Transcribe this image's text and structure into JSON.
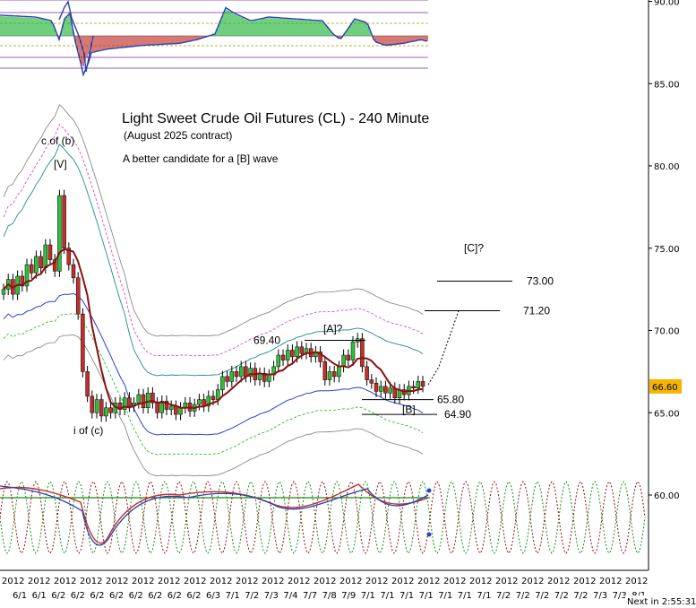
{
  "chart_data": {
    "type": "candlestick",
    "title": "Light Sweet Crude Oil Futures (CL) - 240 Minute",
    "subtitle": "(August 2025 contract)",
    "note": "A better candidate for a [B] wave",
    "y_axis": {
      "ticks": [
        60.0,
        65.0,
        70.0,
        75.0,
        80.0,
        85.0,
        90.0
      ],
      "labels": [
        "60.00",
        "65.00",
        "70.00",
        "75.00",
        "80.00",
        "85.00",
        "90.00"
      ]
    },
    "last_price": "66.60",
    "wave_labels": [
      {
        "text": "c of (b)",
        "price": 81.3
      },
      {
        "text": "[V]",
        "price": 79.9
      },
      {
        "text": "i of (c)",
        "price": 63.7
      },
      {
        "text": "[A]?",
        "price": 69.9
      },
      {
        "text": "[B]",
        "price": 65.0
      },
      {
        "text": "[C]?",
        "price": 74.8
      }
    ],
    "levels": [
      {
        "label": "69.40",
        "value": 69.4
      },
      {
        "label": "65.80",
        "value": 65.8
      },
      {
        "label": "64.90",
        "value": 64.9
      },
      {
        "label": "71.20",
        "value": 71.2
      },
      {
        "label": "73.00",
        "value": 73.0
      }
    ],
    "closes": [
      72.5,
      73.1,
      72.2,
      73.3,
      72.7,
      74.0,
      73.5,
      74.5,
      73.8,
      75.2,
      74.3,
      73.6,
      78.2,
      75.0,
      74.0,
      73.2,
      71.0,
      67.5,
      66.0,
      65.0,
      65.8,
      64.8,
      65.3,
      65.0,
      65.6,
      65.2,
      65.9,
      65.4,
      65.6,
      66.1,
      65.3,
      66.2,
      65.6,
      65.0,
      65.7,
      65.2,
      65.4,
      64.9,
      65.3,
      65.6,
      65.1,
      65.5,
      65.8,
      65.4,
      66.0,
      65.8,
      66.4,
      67.2,
      66.9,
      67.5,
      67.2,
      67.8,
      67.2,
      67.7,
      67.0,
      67.4,
      66.9,
      67.3,
      67.8,
      68.5,
      68.2,
      68.8,
      68.4,
      69.0,
      68.6,
      68.9,
      68.4,
      68.7,
      68.1,
      67.0,
      67.5,
      67.2,
      67.8,
      68.5,
      68.2,
      69.3,
      69.5,
      67.8,
      67.0,
      66.8,
      66.3,
      66.6,
      66.2,
      66.5,
      65.9,
      66.4,
      66.1,
      66.6,
      66.5,
      66.9,
      66.6
    ],
    "x_axis": {
      "year_labels": [
        "2012",
        "2012",
        "2012",
        "2012",
        "2012",
        "2012",
        "2012",
        "2012",
        "2012",
        "2012",
        "2012",
        "2012",
        "2012",
        "2012",
        "2012",
        "2012",
        "2012",
        "2012",
        "2012",
        "2012",
        "2012",
        "2012",
        "2012",
        "2012",
        "2012"
      ],
      "date_labels": [
        "6/1",
        "6/1",
        "6/2",
        "6/2",
        "6/2",
        "6/2",
        "6/2",
        "6/2",
        "6/2",
        "6/2",
        "6/3",
        "7/1",
        "7/2",
        "7/3",
        "7/4",
        "7/7",
        "7/8",
        "7/9",
        "7/1",
        "7/1",
        "7/1",
        "7/1",
        "7/1",
        "7/1",
        "7/1",
        "7/2",
        "7/2",
        "7/2",
        "7/2",
        "7/2",
        "7/3",
        "7/3",
        "8/1"
      ]
    },
    "status": "Next in 2:55:31"
  }
}
